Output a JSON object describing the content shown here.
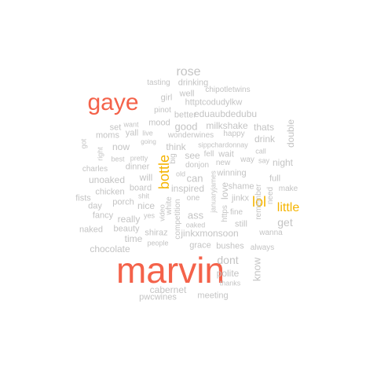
{
  "palette": {
    "primary": "#f4624a",
    "secondary": "#f5b400",
    "muted": "#c4c4c4"
  },
  "words": [
    {
      "id": "marvin",
      "text": "marvin",
      "color": "primary",
      "orient": "h"
    },
    {
      "id": "gaye",
      "text": "gaye",
      "color": "primary",
      "orient": "h"
    },
    {
      "id": "bottle",
      "text": "bottle",
      "color": "secondary",
      "orient": "v"
    },
    {
      "id": "lol",
      "text": "lol",
      "color": "secondary",
      "orient": "h"
    },
    {
      "id": "little",
      "text": "little",
      "color": "secondary",
      "orient": "h"
    },
    {
      "id": "rose",
      "text": "rose",
      "color": "muted",
      "orient": "h"
    },
    {
      "id": "dont",
      "text": "dont",
      "color": "muted",
      "orient": "h"
    },
    {
      "id": "get",
      "text": "get",
      "color": "muted",
      "orient": "h"
    },
    {
      "id": "know",
      "text": "know",
      "color": "muted",
      "orient": "v"
    },
    {
      "id": "good",
      "text": "good",
      "color": "muted",
      "orient": "h"
    },
    {
      "id": "ass",
      "text": "ass",
      "color": "muted",
      "orient": "h"
    },
    {
      "id": "can",
      "text": "can",
      "color": "muted",
      "orient": "h"
    },
    {
      "id": "polite",
      "text": "polite",
      "color": "muted",
      "orient": "h"
    },
    {
      "id": "cabernet",
      "text": "cabernet",
      "color": "muted",
      "orient": "h"
    },
    {
      "id": "chocolate",
      "text": "chocolate",
      "color": "muted",
      "orient": "h"
    },
    {
      "id": "unoaked",
      "text": "unoaked",
      "color": "muted",
      "orient": "h"
    },
    {
      "id": "inspired",
      "text": "inspired",
      "color": "muted",
      "orient": "h"
    },
    {
      "id": "jinkxmonsoon",
      "text": "jinkxmonsoon",
      "color": "muted",
      "orient": "h"
    },
    {
      "id": "milkshake",
      "text": "milkshake",
      "color": "muted",
      "orient": "h"
    },
    {
      "id": "eduaubdedubu",
      "text": "eduaubdedubu",
      "color": "muted",
      "orient": "h"
    },
    {
      "id": "httptcodudylkw",
      "text": "httptcodudylkw",
      "color": "muted",
      "orient": "h"
    },
    {
      "id": "drinking",
      "text": "drinking",
      "color": "muted",
      "orient": "h"
    },
    {
      "id": "well",
      "text": "well",
      "color": "muted",
      "orient": "h"
    },
    {
      "id": "girl",
      "text": "girl",
      "color": "muted",
      "orient": "h"
    },
    {
      "id": "now",
      "text": "now",
      "color": "muted",
      "orient": "h"
    },
    {
      "id": "will",
      "text": "will",
      "color": "muted",
      "orient": "h"
    },
    {
      "id": "really",
      "text": "really",
      "color": "muted",
      "orient": "h"
    },
    {
      "id": "nice",
      "text": "nice",
      "color": "muted",
      "orient": "h"
    },
    {
      "id": "time",
      "text": "time",
      "color": "muted",
      "orient": "h"
    },
    {
      "id": "night",
      "text": "night",
      "color": "muted",
      "orient": "h"
    },
    {
      "id": "drink",
      "text": "drink",
      "color": "muted",
      "orient": "h"
    },
    {
      "id": "thats",
      "text": "thats",
      "color": "muted",
      "orient": "h"
    },
    {
      "id": "think",
      "text": "think",
      "color": "muted",
      "orient": "h"
    },
    {
      "id": "see",
      "text": "see",
      "color": "muted",
      "orient": "h"
    },
    {
      "id": "love",
      "text": "love",
      "color": "muted",
      "orient": "v"
    },
    {
      "id": "jinkx",
      "text": "jinkx",
      "color": "muted",
      "orient": "h"
    },
    {
      "id": "shame",
      "text": "shame",
      "color": "muted",
      "orient": "h"
    },
    {
      "id": "double",
      "text": "double",
      "color": "muted",
      "orient": "v"
    },
    {
      "id": "full",
      "text": "full",
      "color": "muted",
      "orient": "h"
    },
    {
      "id": "fists",
      "text": "fists",
      "color": "muted",
      "orient": "h"
    },
    {
      "id": "shiraz",
      "text": "shiraz",
      "color": "muted",
      "orient": "h"
    },
    {
      "id": "mood",
      "text": "mood",
      "color": "muted",
      "orient": "h"
    },
    {
      "id": "better",
      "text": "better",
      "color": "muted",
      "orient": "h"
    },
    {
      "id": "pinot",
      "text": "pinot",
      "color": "muted",
      "orient": "h"
    },
    {
      "id": "tasting",
      "text": "tasting",
      "color": "muted",
      "orient": "h"
    },
    {
      "id": "chipotletwins",
      "text": "chipotletwins",
      "color": "muted",
      "orient": "h"
    },
    {
      "id": "wonderwines",
      "text": "wonderwines",
      "color": "muted",
      "orient": "h"
    },
    {
      "id": "sippchardonnay",
      "text": "sippchardonnay",
      "color": "muted",
      "orient": "h"
    },
    {
      "id": "donjon",
      "text": "donjon",
      "color": "muted",
      "orient": "h"
    },
    {
      "id": "winning",
      "text": "winning",
      "color": "muted",
      "orient": "h"
    },
    {
      "id": "wait",
      "text": "wait",
      "color": "muted",
      "orient": "h"
    },
    {
      "id": "fell",
      "text": "fell",
      "color": "muted",
      "orient": "h"
    },
    {
      "id": "happy",
      "text": "happy",
      "color": "muted",
      "orient": "h"
    },
    {
      "id": "new",
      "text": "new",
      "color": "muted",
      "orient": "h"
    },
    {
      "id": "big",
      "text": "big",
      "color": "muted",
      "orient": "v"
    },
    {
      "id": "one",
      "text": "one",
      "color": "muted",
      "orient": "h"
    },
    {
      "id": "fine",
      "text": "fine",
      "color": "muted",
      "orient": "h"
    },
    {
      "id": "still",
      "text": "still",
      "color": "muted",
      "orient": "h"
    },
    {
      "id": "grace",
      "text": "grace",
      "color": "muted",
      "orient": "h"
    },
    {
      "id": "bushes",
      "text": "bushes",
      "color": "muted",
      "orient": "h"
    },
    {
      "id": "always",
      "text": "always",
      "color": "muted",
      "orient": "h"
    },
    {
      "id": "wanna",
      "text": "wanna",
      "color": "muted",
      "orient": "h"
    },
    {
      "id": "make",
      "text": "make",
      "color": "muted",
      "orient": "h"
    },
    {
      "id": "need",
      "text": "need",
      "color": "muted",
      "orient": "v"
    },
    {
      "id": "remember",
      "text": "remember",
      "color": "muted",
      "orient": "v"
    },
    {
      "id": "say",
      "text": "say",
      "color": "muted",
      "orient": "h"
    },
    {
      "id": "call",
      "text": "call",
      "color": "muted",
      "orient": "h"
    },
    {
      "id": "way",
      "text": "way",
      "color": "muted",
      "orient": "h"
    },
    {
      "id": "januaryjames",
      "text": "januaryjames",
      "color": "muted",
      "orient": "v"
    },
    {
      "id": "https",
      "text": "https",
      "color": "muted",
      "orient": "v"
    },
    {
      "id": "oaked",
      "text": "oaked",
      "color": "muted",
      "orient": "h"
    },
    {
      "id": "competition",
      "text": "competition",
      "color": "muted",
      "orient": "v"
    },
    {
      "id": "white",
      "text": "white",
      "color": "muted",
      "orient": "v"
    },
    {
      "id": "video",
      "text": "video",
      "color": "muted",
      "orient": "v"
    },
    {
      "id": "yes",
      "text": "yes",
      "color": "muted",
      "orient": "h"
    },
    {
      "id": "shit",
      "text": "shit",
      "color": "muted",
      "orient": "h"
    },
    {
      "id": "board",
      "text": "board",
      "color": "muted",
      "orient": "h"
    },
    {
      "id": "chicken",
      "text": "chicken",
      "color": "muted",
      "orient": "h"
    },
    {
      "id": "porch",
      "text": "porch",
      "color": "muted",
      "orient": "h"
    },
    {
      "id": "fancy",
      "text": "fancy",
      "color": "muted",
      "orient": "h"
    },
    {
      "id": "day",
      "text": "day",
      "color": "muted",
      "orient": "h"
    },
    {
      "id": "naked",
      "text": "naked",
      "color": "muted",
      "orient": "h"
    },
    {
      "id": "beauty",
      "text": "beauty",
      "color": "muted",
      "orient": "h"
    },
    {
      "id": "people",
      "text": "people",
      "color": "muted",
      "orient": "h"
    },
    {
      "id": "charles",
      "text": "charles",
      "color": "muted",
      "orient": "h"
    },
    {
      "id": "dinner",
      "text": "dinner",
      "color": "muted",
      "orient": "h"
    },
    {
      "id": "best",
      "text": "best",
      "color": "muted",
      "orient": "h"
    },
    {
      "id": "pretty",
      "text": "pretty",
      "color": "muted",
      "orient": "h"
    },
    {
      "id": "going",
      "text": "going",
      "color": "muted",
      "orient": "h"
    },
    {
      "id": "yall",
      "text": "yall",
      "color": "muted",
      "orient": "h"
    },
    {
      "id": "live",
      "text": "live",
      "color": "muted",
      "orient": "h"
    },
    {
      "id": "moms",
      "text": "moms",
      "color": "muted",
      "orient": "h"
    },
    {
      "id": "set",
      "text": "set",
      "color": "muted",
      "orient": "h"
    },
    {
      "id": "want",
      "text": "want",
      "color": "muted",
      "orient": "h"
    },
    {
      "id": "got",
      "text": "got",
      "color": "muted",
      "orient": "v"
    },
    {
      "id": "right",
      "text": "right",
      "color": "muted",
      "orient": "v"
    },
    {
      "id": "old",
      "text": "old",
      "color": "muted",
      "orient": "h"
    },
    {
      "id": "thanks",
      "text": "thanks",
      "color": "muted",
      "orient": "h"
    },
    {
      "id": "meeting",
      "text": "meeting",
      "color": "muted",
      "orient": "h"
    },
    {
      "id": "pwcwines",
      "text": "pwcwines",
      "color": "muted",
      "orient": "h"
    }
  ]
}
